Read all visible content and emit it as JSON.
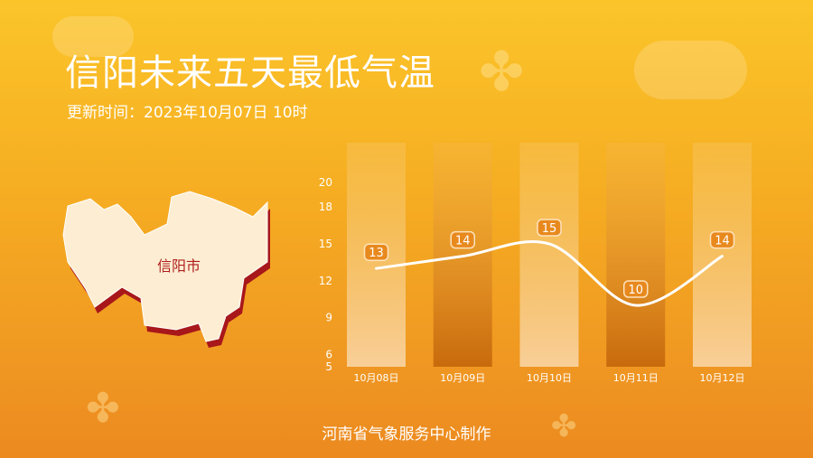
{
  "title": "信阳未来五天最低气温",
  "update_time": "更新时间：2023年10月07日 10时",
  "map_label": "信阳市",
  "footer": "河南省气象服务中心制作",
  "colors": {
    "accent": "#e8891e",
    "line": "#ffffff",
    "map_fill": "#fdeed3",
    "map_shadow": "#a8171a",
    "map_label": "#b01e1e"
  },
  "chart_data": {
    "type": "line",
    "categories": [
      "10月08日",
      "10月09日",
      "10月10日",
      "10月11日",
      "10月12日"
    ],
    "values": [
      13,
      14,
      15,
      10,
      14
    ],
    "yticks": [
      5,
      6,
      9,
      12,
      15,
      18,
      20
    ],
    "ylim": [
      5,
      20
    ],
    "grid": false
  }
}
